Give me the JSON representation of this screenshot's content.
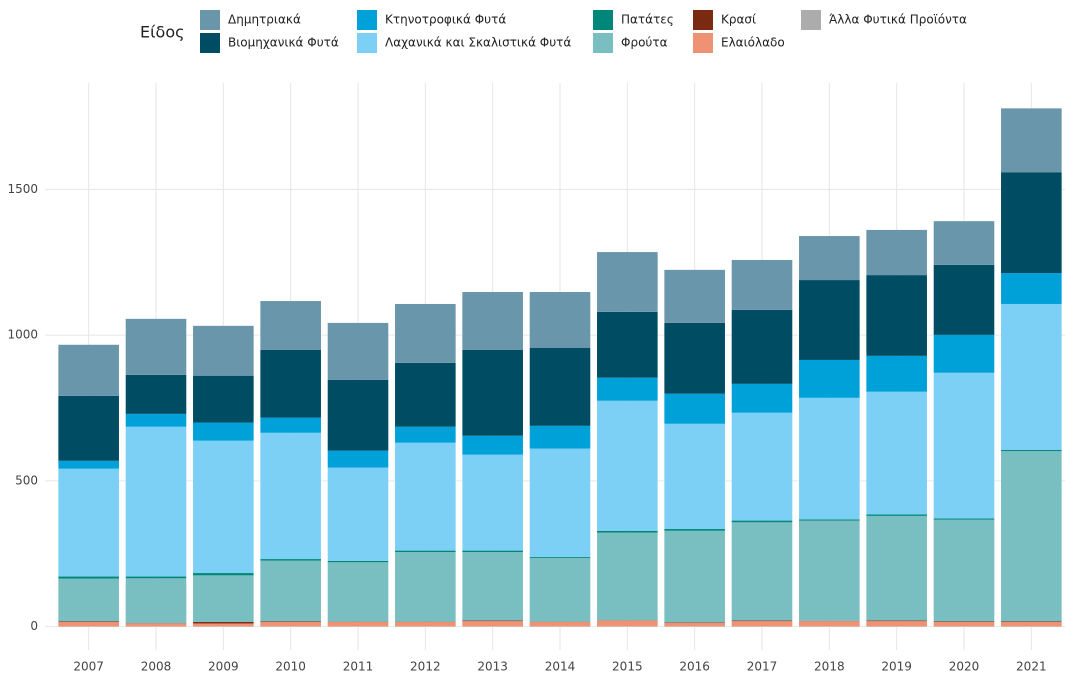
{
  "chart_data": {
    "type": "stacked_bar",
    "legend_title": "Είδος",
    "categories": [
      "2007",
      "2008",
      "2009",
      "2010",
      "2011",
      "2012",
      "2013",
      "2014",
      "2015",
      "2016",
      "2017",
      "2018",
      "2019",
      "2020",
      "2021"
    ],
    "series": [
      {
        "name": "Δημητριακά",
        "color": "#6996aa",
        "values": [
          175,
          192,
          171,
          167,
          195,
          202,
          198,
          191,
          205,
          182,
          171,
          151,
          155,
          150,
          219
        ]
      },
      {
        "name": "Βιομηχανικά Φυτά",
        "color": "#004c63",
        "values": [
          223,
          134,
          161,
          233,
          243,
          219,
          295,
          268,
          226,
          243,
          254,
          274,
          277,
          240,
          346
        ]
      },
      {
        "name": "Κτηνοτροφικά Φυτά",
        "color": "#00a0d8",
        "values": [
          27,
          44,
          62,
          52,
          58,
          55,
          65,
          78,
          79,
          103,
          99,
          130,
          123,
          130,
          106
        ]
      },
      {
        "name": "Λαχανικά και Σκαλιστικά Φυτά",
        "color": "#7dd0f5",
        "values": [
          370,
          514,
          454,
          433,
          320,
          370,
          329,
          372,
          446,
          361,
          370,
          417,
          421,
          500,
          501
        ]
      },
      {
        "name": "Πατάτες",
        "color": "#00877a",
        "values": [
          7,
          6,
          8,
          5,
          5,
          5,
          5,
          3,
          6,
          6,
          6,
          4,
          5,
          4,
          4
        ]
      },
      {
        "name": "Φρούτα",
        "color": "#79bfc1",
        "values": [
          147,
          154,
          160,
          209,
          204,
          239,
          235,
          219,
          301,
          314,
          337,
          344,
          359,
          349,
          584
        ]
      },
      {
        "name": "Κρασί",
        "color": "#7a2a10",
        "values": [
          2,
          1,
          5,
          2,
          1,
          1,
          2,
          1,
          1,
          2,
          2,
          1,
          2,
          2,
          2
        ]
      },
      {
        "name": "Ελαιόλαδο",
        "color": "#ef9274",
        "values": [
          15,
          10,
          10,
          15,
          15,
          15,
          18,
          15,
          20,
          12,
          18,
          18,
          18,
          15,
          15
        ]
      },
      {
        "name": "Άλλα Φυτικά Προϊόντα",
        "color": "#acacac",
        "values": [
          1,
          1,
          1,
          1,
          1,
          1,
          1,
          1,
          1,
          1,
          1,
          1,
          1,
          1,
          1
        ]
      }
    ],
    "ylim": [
      -80,
      1865
    ],
    "yticks": [
      0,
      500,
      1000,
      1500
    ],
    "grid": true
  }
}
